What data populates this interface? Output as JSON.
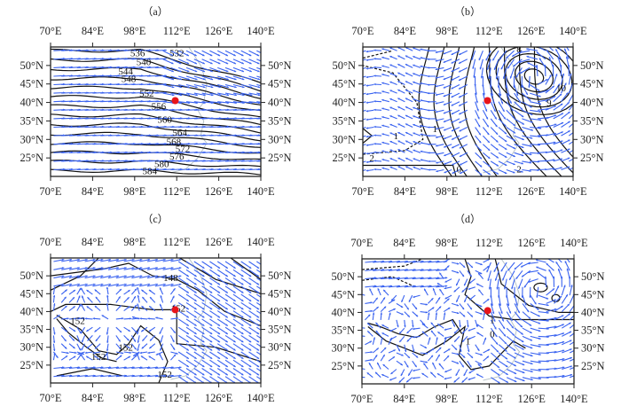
{
  "chart_data": [
    {
      "type": "map",
      "panel_label": "（a）",
      "lon_range": [
        70,
        140
      ],
      "lat_range": [
        20,
        55
      ],
      "lon_ticks": [
        "70°E",
        "84°E",
        "98°E",
        "112°E",
        "126°E",
        "140°E"
      ],
      "lat_ticks": [
        "50°N",
        "45°N",
        "40°N",
        "35°N",
        "30°N",
        "25°N"
      ],
      "marker": {
        "lon": 111.5,
        "lat": 40.5,
        "color": "#e8141a"
      },
      "contour_labels": [
        {
          "text": "536",
          "lon": 99,
          "lat": 53.5
        },
        {
          "text": "532",
          "lon": 112,
          "lat": 53.5
        },
        {
          "text": "540",
          "lon": 101,
          "lat": 51
        },
        {
          "text": "544",
          "lon": 95,
          "lat": 48.5
        },
        {
          "text": "548",
          "lon": 96,
          "lat": 46.5
        },
        {
          "text": "552",
          "lon": 102,
          "lat": 42.5
        },
        {
          "text": "556",
          "lon": 106,
          "lat": 39
        },
        {
          "text": "560",
          "lon": 108,
          "lat": 35.5
        },
        {
          "text": "564",
          "lon": 113,
          "lat": 32
        },
        {
          "text": "568",
          "lon": 111,
          "lat": 29.5
        },
        {
          "text": "572",
          "lon": 114,
          "lat": 27.5
        },
        {
          "text": "576",
          "lon": 112,
          "lat": 25.5
        },
        {
          "text": "580",
          "lon": 107,
          "lat": 23.5
        },
        {
          "text": "584",
          "lon": 103,
          "lat": 21.5
        }
      ]
    },
    {
      "type": "map",
      "panel_label": "（b）",
      "lon_range": [
        70,
        140
      ],
      "lat_range": [
        20,
        55
      ],
      "lon_ticks": [
        "70°E",
        "84°E",
        "98°E",
        "112°E",
        "126°E",
        "140°E"
      ],
      "lat_ticks": [
        "50°N",
        "45°N",
        "40°N",
        "35°N",
        "30°N",
        "25°N"
      ],
      "marker": {
        "lon": 111.5,
        "lat": 40.5,
        "color": "#e8141a"
      },
      "contour_labels": [
        {
          "text": "8",
          "lon": 122,
          "lat": 54.5
        },
        {
          "text": "10",
          "lon": 136,
          "lat": 44
        },
        {
          "text": "9",
          "lon": 132,
          "lat": 40
        },
        {
          "text": "1",
          "lon": 94,
          "lat": 33
        },
        {
          "text": "1",
          "lon": 81,
          "lat": 31
        },
        {
          "text": "2",
          "lon": 73,
          "lat": 25
        },
        {
          "text": "0",
          "lon": 102,
          "lat": 22
        },
        {
          "text": "2",
          "lon": 122,
          "lat": 22
        }
      ]
    },
    {
      "type": "map",
      "panel_label": "（c）",
      "lon_range": [
        70,
        140
      ],
      "lat_range": [
        20,
        55
      ],
      "lon_ticks": [
        "70°E",
        "84°E",
        "98°E",
        "112°E",
        "126°E",
        "140°E"
      ],
      "lat_ticks": [
        "50°N",
        "45°N",
        "40°N",
        "35°N",
        "30°N",
        "25°N"
      ],
      "marker": {
        "lon": 111.5,
        "lat": 40.5,
        "color": "#e8141a"
      },
      "contour_labels": [
        {
          "text": "148",
          "lon": 110,
          "lat": 49.5
        },
        {
          "text": "152",
          "lon": 112.5,
          "lat": 41
        },
        {
          "text": "152",
          "lon": 79,
          "lat": 37.5
        },
        {
          "text": "152",
          "lon": 95,
          "lat": 30
        },
        {
          "text": "152",
          "lon": 86,
          "lat": 27.5
        },
        {
          "text": "152",
          "lon": 108,
          "lat": 22.5
        }
      ]
    },
    {
      "type": "map",
      "panel_label": "（d）",
      "lon_range": [
        70,
        140
      ],
      "lat_range": [
        20,
        55
      ],
      "lon_ticks": [
        "70°E",
        "84°E",
        "98°E",
        "112°E",
        "126°E",
        "140°E"
      ],
      "lat_ticks": [
        "50°N",
        "45°N",
        "40°N",
        "35°N",
        "30°N",
        "25°N"
      ],
      "marker": {
        "lon": 111.5,
        "lat": 40.5,
        "color": "#e8141a"
      },
      "contour_labels": [
        {
          "text": "1",
          "lon": 113,
          "lat": 38
        },
        {
          "text": "0",
          "lon": 113,
          "lat": 34
        },
        {
          "text": "1",
          "lon": 105,
          "lat": 32
        }
      ]
    }
  ],
  "colors": {
    "wind": "#3a63f0",
    "contour": "#111111",
    "coast": "#b8c4c8"
  }
}
